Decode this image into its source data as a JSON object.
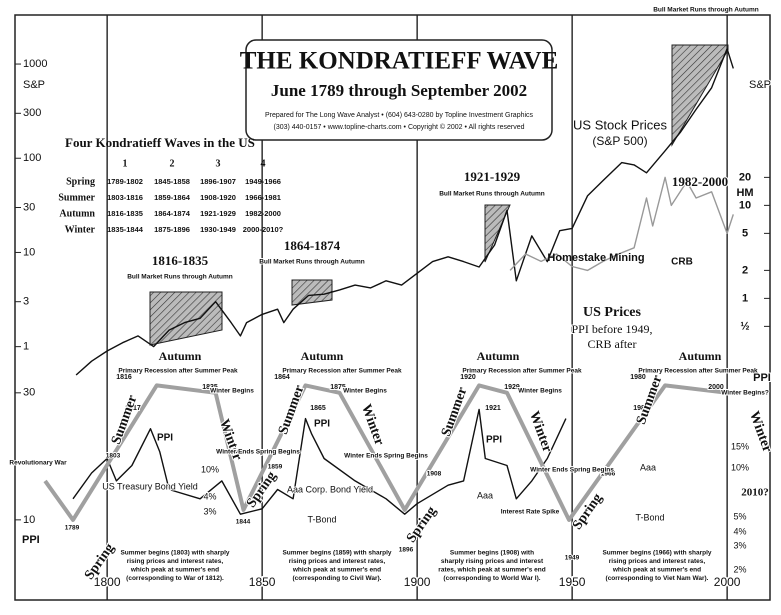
{
  "header": {
    "title": "THE KONDRATIEFF WAVE",
    "subtitle": "June 1789 through September 2002",
    "credit_1": "Prepared for The Long Wave Analyst • (604) 643-0280 by Topline Investment Graphics",
    "credit_2": "(303) 440-0157 • www.topline-charts.com • Copyright © 2002 • All rights reserved"
  },
  "table": {
    "title": "Four Kondratieff Waves in the US",
    "columns": [
      "1",
      "2",
      "3",
      "4"
    ],
    "rows": [
      [
        "Spring",
        "1789-1802",
        "1845-1858",
        "1896-1907",
        "1949-1966"
      ],
      [
        "Summer",
        "1803-1816",
        "1859-1864",
        "1908-1920",
        "1966-1981"
      ],
      [
        "Autumn",
        "1816-1835",
        "1864-1874",
        "1921-1929",
        "1982-2000"
      ],
      [
        "Winter",
        "1835-1844",
        "1875-1896",
        "1930-1949",
        "2000-2010?"
      ]
    ]
  },
  "chart_data": [
    {
      "type": "line",
      "log_scale": true,
      "ylabel": "S&P",
      "y2label": "HM",
      "xlim": [
        1773.5,
        2010.6
      ],
      "ylim": [
        0.5,
        1800
      ],
      "yticks": [
        1000,
        300,
        100,
        30,
        10,
        3,
        1
      ],
      "y2lim": [
        0.15,
        600
      ],
      "y2ticks": [
        20,
        10,
        5,
        2,
        1,
        {
          "value": 0.5,
          "label": "½"
        }
      ],
      "series": [
        {
          "name": "US Stock Prices",
          "color": "#111111",
          "x": [
            1790,
            1795,
            1800,
            1805,
            1810,
            1815,
            1820,
            1825,
            1830,
            1835,
            1840,
            1843,
            1845,
            1850,
            1855,
            1857,
            1860,
            1865,
            1870,
            1875,
            1880,
            1885,
            1890,
            1895,
            1900,
            1905,
            1910,
            1915,
            1920,
            1925,
            1929,
            1932,
            1937,
            1942,
            1946,
            1950,
            1955,
            1960,
            1966,
            1970,
            1974,
            1980,
            1985,
            1990,
            1995,
            2000,
            2002
          ],
          "values": [
            0.5,
            0.7,
            0.9,
            1.1,
            1.3,
            1.0,
            1.5,
            1.8,
            2.0,
            3.0,
            1.8,
            1.3,
            1.8,
            2.2,
            2.5,
            1.8,
            2.5,
            3.5,
            3.6,
            4.0,
            4.5,
            4.2,
            5.0,
            4.5,
            6.0,
            8,
            9,
            8,
            7,
            12,
            28,
            5,
            15,
            8,
            17,
            18,
            40,
            58,
            90,
            85,
            70,
            120,
            190,
            330,
            560,
            1450,
            900
          ]
        },
        {
          "name": "Homestake Mining",
          "color": "#999999",
          "axis": "y2",
          "x": [
            1930,
            1935,
            1940,
            1945,
            1950,
            1955,
            1960,
            1965,
            1970,
            1974,
            1976,
            1980,
            1982,
            1987,
            1990,
            1995,
            2000,
            2002
          ],
          "values": [
            2,
            3,
            2.5,
            3,
            2.2,
            2,
            2.5,
            3,
            3.5,
            12,
            6,
            20,
            10,
            18,
            12,
            14,
            5,
            8
          ]
        }
      ]
    },
    {
      "type": "line",
      "log_scale": true,
      "ylabel": "PPI",
      "xlim": [
        1773.5,
        2010.6
      ],
      "ylim": [
        5,
        35
      ],
      "yticks": [
        30,
        10
      ],
      "xticks": [
        1800,
        1850,
        1900,
        1950,
        2000
      ],
      "series": [
        {
          "name": "PPI",
          "color": "#111111",
          "x": [
            1789,
            1795,
            1800,
            1803,
            1808,
            1814,
            1817,
            1820,
            1830,
            1837,
            1843,
            1850,
            1855,
            1860,
            1864,
            1866,
            1870,
            1880,
            1890,
            1896,
            1900,
            1910,
            1915,
            1920,
            1922,
            1929,
            1932,
            1937,
            1942,
            1948
          ],
          "values": [
            12,
            15,
            17,
            14,
            16,
            22,
            18,
            13,
            12,
            14,
            10.5,
            11,
            13,
            12,
            24,
            21,
            17,
            14,
            12,
            10.5,
            11.5,
            13.5,
            14,
            26,
            17,
            16,
            12,
            14,
            17,
            24
          ]
        },
        {
          "color": "#a0a0a0",
          "x": [
            1780,
            1789,
            1816,
            1835,
            1844,
            1864,
            1875,
            1896,
            1920,
            1929,
            1949,
            1980,
            2000
          ],
          "values": [
            14,
            10,
            32,
            30,
            10.9,
            32,
            30,
            10.9,
            32,
            30,
            10,
            32,
            30
          ]
        }
      ]
    }
  ],
  "annotations": [
    "1816-1835",
    "Bull Market Runs through Autumn",
    "1864-1874",
    "Bull Market Runs through Autumn",
    "1921-1929",
    "Bull Market Runs through Autumn",
    "Bull Market Runs through Autumn",
    "1982-2000",
    "(S&P 500)",
    "CRB",
    "US Prices",
    "PPI before 1949,",
    "CRB after",
    "Autumn",
    "Autumn",
    "Autumn",
    "Autumn",
    "1816",
    "1835",
    "1817",
    "1864",
    "1875",
    "1865",
    "1920",
    "1929",
    "1921",
    "1980",
    "2000",
    "1982",
    "Primary Recession after Summer Peak",
    "Primary Recession after Summer Peak",
    "Primary Recession after Summer Peak",
    "Primary Recession after Summer Peak",
    "Winter Begins",
    "Winter Begins",
    "Winter Begins",
    "Winter Begins?",
    "Summer",
    "Summer",
    "Summer",
    "Summer",
    "Winter",
    "Winter",
    "Winter",
    "Winter",
    "Spring",
    "Spring",
    "Spring",
    "Spring",
    "PPI",
    "PPI",
    "Revolutionary War",
    "1803",
    "1789",
    "1844",
    "1859",
    "1896",
    "1908",
    "1949",
    "1966",
    "Winter Ends Spring Begins",
    "Winter Ends Spring Begins",
    "Winter Ends Spring Begins",
    "US Treasury Bond Yield",
    "Aaa Corp. Bond Yield",
    "T-Bond",
    "T-Bond",
    "Aaa",
    "Aaa",
    "Interest Rate Spike",
    "2010?",
    "PPI",
    "S&P",
    "15%",
    "10%",
    "5%",
    "4%",
    "3%",
    "2%",
    "10%",
    "4%",
    "3%"
  ],
  "notes": [
    [
      "Summer begins (1803) with sharply",
      "rising prices and interest rates,",
      "which peak at summer's end",
      "(corresponding to War of 1812)."
    ],
    [
      "Summer begins (1859) with sharply",
      "rising prices and interest rates,",
      "which peak at summer's end",
      "(corresponding to Civil War)."
    ],
    [
      "Summer begins (1908) with",
      "sharply rising prices and interest",
      "rates, which peak at summer's end",
      "(corresponding to World War I)."
    ],
    [
      "Summer begins (1966) with sharply",
      "rising prices and interest rates,",
      "which peak at summer's end",
      "(corresponding to Viet Nam War)."
    ]
  ]
}
